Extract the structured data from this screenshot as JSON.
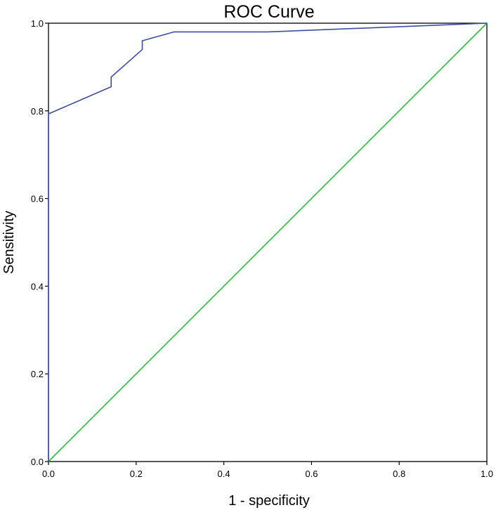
{
  "chart_data": {
    "type": "line",
    "title": "ROC Curve",
    "xlabel": "1 - specificity",
    "ylabel": "Sensitivity",
    "xlim": [
      0.0,
      1.0
    ],
    "ylim": [
      0.0,
      1.0
    ],
    "x_ticks": [
      "0.0",
      "0.2",
      "0.4",
      "0.6",
      "0.8",
      "1.0"
    ],
    "y_ticks": [
      "0.0",
      "0.2",
      "0.4",
      "0.6",
      "0.8",
      "1.0"
    ],
    "grid": false,
    "legend": "none",
    "series": [
      {
        "color": "#3a4fa3",
        "x": [
          0.0,
          0.0,
          0.143,
          0.143,
          0.214,
          0.214,
          0.286,
          0.5,
          1.0
        ],
        "y": [
          0.0,
          0.793,
          0.855,
          0.877,
          0.94,
          0.96,
          0.98,
          0.98,
          1.0
        ]
      },
      {
        "color": "#22c33a",
        "x": [
          0.0,
          1.0
        ],
        "y": [
          0.0,
          1.0
        ]
      }
    ]
  }
}
